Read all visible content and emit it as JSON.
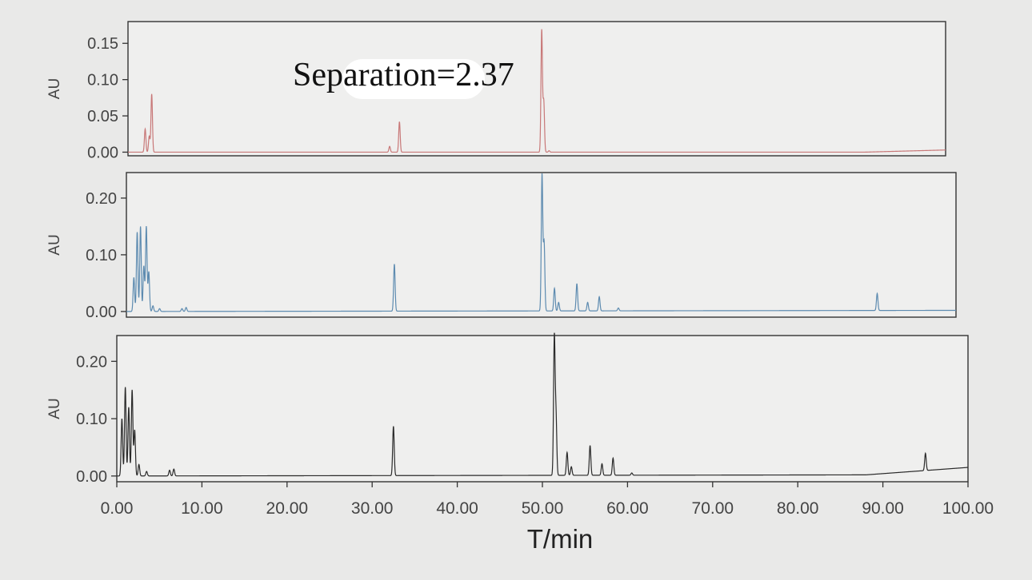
{
  "chart_data": [
    {
      "type": "line",
      "ylabel": "AU",
      "xlim": [
        0,
        100
      ],
      "ylim": [
        -0.005,
        0.18
      ],
      "yticks": [
        "0.00",
        "0.05",
        "0.10",
        "0.15"
      ],
      "ytick_values": [
        0,
        0.05,
        0.1,
        0.15
      ],
      "color": "#c87878",
      "baseline_drift": [
        [
          0,
          0.0
        ],
        [
          90,
          0.0
        ],
        [
          100,
          0.003
        ]
      ],
      "annotation": "Separation=2.37",
      "peaks": [
        {
          "x": 2.1,
          "y": 0.032
        },
        {
          "x": 2.6,
          "y": 0.022
        },
        {
          "x": 2.9,
          "y": 0.08
        },
        {
          "x": 32.0,
          "y": 0.008
        },
        {
          "x": 33.2,
          "y": 0.042
        },
        {
          "x": 50.6,
          "y": 0.168
        },
        {
          "x": 50.85,
          "y": 0.07
        },
        {
          "x": 51.5,
          "y": 0.002
        }
      ]
    },
    {
      "type": "line",
      "ylabel": "AU",
      "xlim": [
        0,
        100
      ],
      "ylim": [
        -0.01,
        0.245
      ],
      "yticks": [
        "0.00",
        "0.10",
        "0.20"
      ],
      "ytick_values": [
        0,
        0.1,
        0.2
      ],
      "color": "#5d8bb0",
      "baseline_drift": [
        [
          0,
          0.0
        ],
        [
          100,
          0.002
        ]
      ],
      "peaks": [
        {
          "x": 0.9,
          "y": 0.06
        },
        {
          "x": 1.3,
          "y": 0.14
        },
        {
          "x": 1.7,
          "y": 0.15
        },
        {
          "x": 2.1,
          "y": 0.08
        },
        {
          "x": 2.4,
          "y": 0.15
        },
        {
          "x": 2.7,
          "y": 0.07
        },
        {
          "x": 3.2,
          "y": 0.01
        },
        {
          "x": 4.0,
          "y": 0.005
        },
        {
          "x": 6.7,
          "y": 0.005
        },
        {
          "x": 7.2,
          "y": 0.007
        },
        {
          "x": 32.3,
          "y": 0.083
        },
        {
          "x": 50.1,
          "y": 0.24
        },
        {
          "x": 50.35,
          "y": 0.12
        },
        {
          "x": 51.6,
          "y": 0.04
        },
        {
          "x": 52.1,
          "y": 0.015
        },
        {
          "x": 54.3,
          "y": 0.048
        },
        {
          "x": 55.6,
          "y": 0.015
        },
        {
          "x": 57.0,
          "y": 0.025
        },
        {
          "x": 59.3,
          "y": 0.005
        },
        {
          "x": 90.5,
          "y": 0.03
        }
      ]
    },
    {
      "type": "line",
      "ylabel": "AU",
      "xlabel": "T/min",
      "xlim": [
        0,
        100
      ],
      "ylim": [
        -0.01,
        0.245
      ],
      "yticks": [
        "0.00",
        "0.10",
        "0.20"
      ],
      "ytick_values": [
        0,
        0.1,
        0.2
      ],
      "xticks": [
        "0.00",
        "10.00",
        "20.00",
        "30.00",
        "40.00",
        "50.00",
        "60.00",
        "70.00",
        "80.00",
        "90.00",
        "100.00"
      ],
      "xtick_values": [
        0,
        10,
        20,
        30,
        40,
        50,
        60,
        70,
        80,
        90,
        100
      ],
      "color": "#2a2a2a",
      "baseline_drift": [
        [
          0,
          0.0
        ],
        [
          88,
          0.002
        ],
        [
          100,
          0.015
        ]
      ],
      "peaks": [
        {
          "x": 0.6,
          "y": 0.1
        },
        {
          "x": 1.0,
          "y": 0.155
        },
        {
          "x": 1.4,
          "y": 0.12
        },
        {
          "x": 1.8,
          "y": 0.15
        },
        {
          "x": 2.1,
          "y": 0.08
        },
        {
          "x": 2.6,
          "y": 0.02
        },
        {
          "x": 3.5,
          "y": 0.008
        },
        {
          "x": 6.2,
          "y": 0.01
        },
        {
          "x": 6.7,
          "y": 0.012
        },
        {
          "x": 32.5,
          "y": 0.086
        },
        {
          "x": 51.4,
          "y": 0.24
        },
        {
          "x": 51.6,
          "y": 0.1
        },
        {
          "x": 52.9,
          "y": 0.04
        },
        {
          "x": 53.4,
          "y": 0.015
        },
        {
          "x": 55.6,
          "y": 0.052
        },
        {
          "x": 57.0,
          "y": 0.02
        },
        {
          "x": 58.3,
          "y": 0.03
        },
        {
          "x": 60.5,
          "y": 0.004
        },
        {
          "x": 95.0,
          "y": 0.03
        }
      ]
    }
  ]
}
